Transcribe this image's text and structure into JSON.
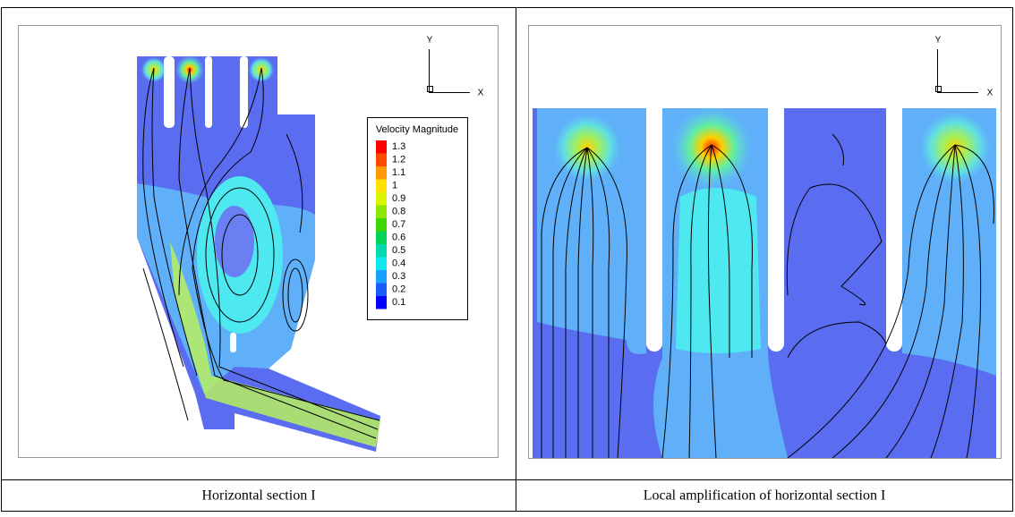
{
  "panels": [
    {
      "axis": {
        "y": "Y",
        "x": "X"
      },
      "legend": {
        "title": "Velocity Magnitude",
        "levels": [
          {
            "value": 1.3,
            "color": "#ff0000"
          },
          {
            "value": 1.2,
            "color": "#ff4a00"
          },
          {
            "value": 1.1,
            "color": "#ff9a00"
          },
          {
            "value": 1,
            "color": "#ffe000"
          },
          {
            "value": 0.9,
            "color": "#d8f500"
          },
          {
            "value": 0.8,
            "color": "#8ee600"
          },
          {
            "value": 0.7,
            "color": "#3ed600"
          },
          {
            "value": 0.6,
            "color": "#00d25a"
          },
          {
            "value": 0.5,
            "color": "#00d8b0"
          },
          {
            "value": 0.4,
            "color": "#10e8f0"
          },
          {
            "value": 0.3,
            "color": "#1aa0ff"
          },
          {
            "value": 0.2,
            "color": "#1a5cff"
          },
          {
            "value": 0.1,
            "color": "#0000ff"
          }
        ]
      },
      "caption": "Horizontal section I"
    },
    {
      "axis": {
        "y": "Y",
        "x": "X"
      },
      "caption": "Local amplification of horizontal section I"
    }
  ]
}
